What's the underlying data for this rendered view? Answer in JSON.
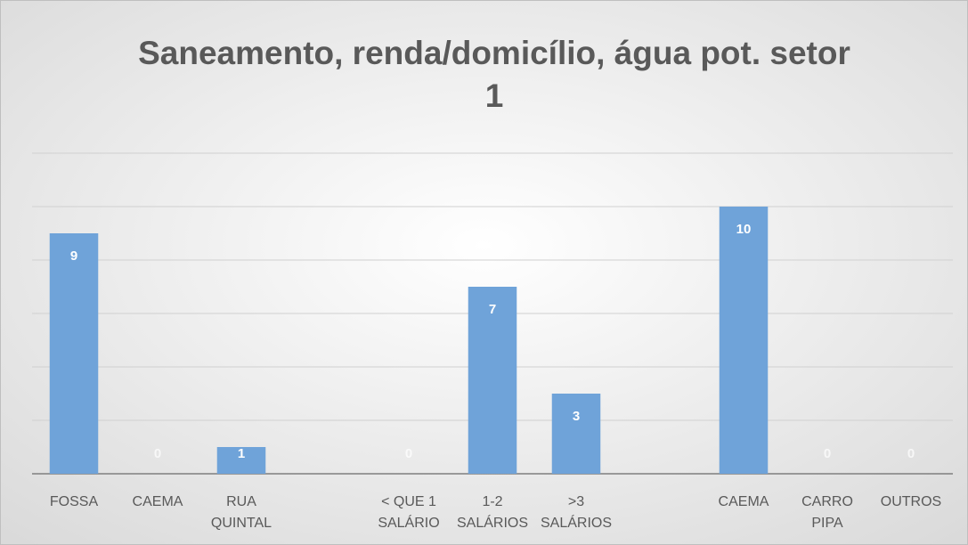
{
  "chart_data": {
    "type": "bar",
    "title": "Saneamento, renda/domicílio, água pot. setor\n1",
    "categories": [
      "FOSSA",
      "CAEMA",
      "RUA\nQUINTAL",
      null,
      "< QUE 1\nSALÁRIO",
      "1-2\nSALÁRIOS",
      ">3\nSALÁRIOS",
      null,
      "CAEMA",
      "CARRO\nPIPA",
      "OUTROS"
    ],
    "values": [
      9,
      0,
      1,
      null,
      0,
      7,
      3,
      null,
      10,
      0,
      0
    ],
    "color": "#6fa3d9",
    "ylim": [
      0,
      12
    ],
    "yticks": [
      0,
      2,
      4,
      6,
      8,
      10,
      12
    ],
    "grid": true
  }
}
